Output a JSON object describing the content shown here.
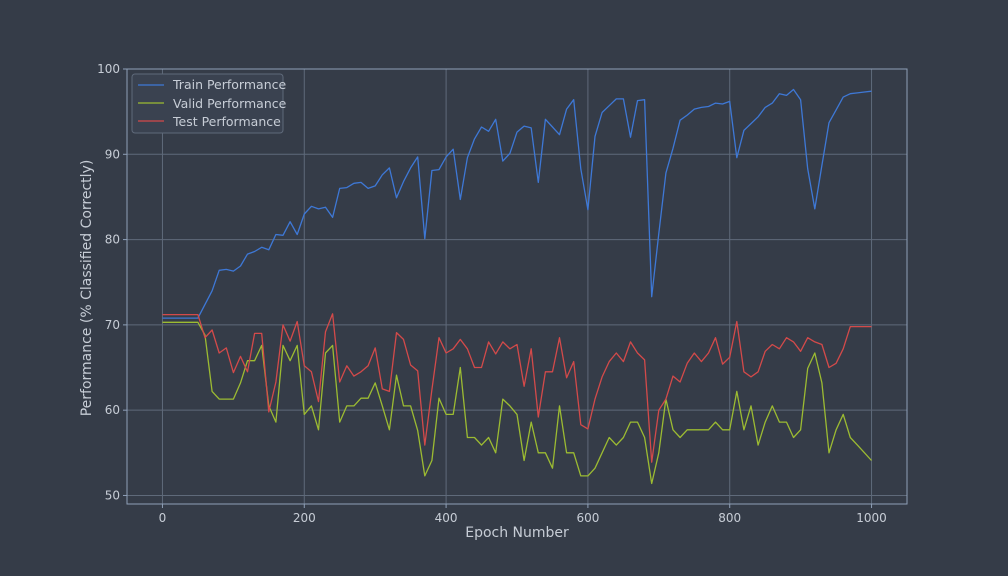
{
  "colors": {
    "background": "#353c48",
    "axes_frame": "#8fa0b8",
    "grid": "#5f6a7a",
    "text": "#c7cdd6",
    "train": "#3e78d6",
    "valid": "#9cbb32",
    "test": "#d34a4a"
  },
  "chart_data": {
    "type": "line",
    "title": "",
    "xlabel": "Epoch Number",
    "ylabel": "Performance (% Classified Correctly)",
    "xlim": [
      -50,
      1050
    ],
    "ylim": [
      49,
      100
    ],
    "xticks": [
      0,
      200,
      400,
      600,
      800,
      1000
    ],
    "yticks": [
      50,
      60,
      70,
      80,
      90,
      100
    ],
    "grid": true,
    "legend_position": "top-left",
    "series": [
      {
        "name": "Train Performance",
        "color": "#3e78d6",
        "x": [
          0,
          50,
          70,
          80,
          90,
          100,
          110,
          120,
          130,
          140,
          150,
          160,
          170,
          180,
          190,
          200,
          210,
          220,
          230,
          240,
          250,
          260,
          270,
          280,
          290,
          300,
          310,
          320,
          330,
          340,
          350,
          360,
          370,
          380,
          390,
          400,
          410,
          420,
          430,
          440,
          450,
          460,
          470,
          480,
          490,
          500,
          510,
          520,
          530,
          540,
          550,
          560,
          570,
          580,
          590,
          600,
          610,
          620,
          630,
          640,
          650,
          660,
          670,
          680,
          690,
          700,
          710,
          720,
          730,
          740,
          750,
          760,
          770,
          780,
          790,
          800,
          810,
          820,
          830,
          840,
          850,
          860,
          870,
          880,
          890,
          900,
          910,
          920,
          930,
          940,
          950,
          960,
          970,
          980,
          990,
          1000
        ],
        "values": [
          70.8,
          70.8,
          74,
          76.4,
          76.5,
          76.3,
          76.9,
          78.3,
          78.6,
          79.1,
          78.8,
          80.6,
          80.5,
          82.1,
          80.6,
          83,
          83.9,
          83.6,
          83.8,
          82.6,
          86,
          86.1,
          86.6,
          86.7,
          86,
          86.3,
          87.6,
          88.4,
          84.9,
          86.8,
          88.4,
          89.7,
          80.1,
          88.1,
          88.2,
          89.7,
          90.6,
          84.7,
          89.6,
          91.8,
          93.2,
          92.7,
          94.1,
          89.2,
          90.1,
          92.6,
          93.3,
          93.1,
          86.7,
          94.1,
          93.2,
          92.3,
          95.3,
          96.4,
          88.3,
          83.5,
          92.1,
          94.9,
          95.7,
          96.5,
          96.5,
          92,
          96.3,
          96.4,
          73.3,
          80.7,
          87.8,
          90.7,
          94,
          94.6,
          95.3,
          95.5,
          95.6,
          96,
          95.9,
          96.2,
          89.6,
          92.8,
          93.6,
          94.4,
          95.5,
          96,
          97.1,
          96.9,
          97.6,
          96.4,
          88.3,
          83.6,
          88.7,
          93.7,
          95.2,
          96.7,
          97.1,
          97.2,
          97.3,
          97.4
        ]
      },
      {
        "name": "Valid Performance",
        "color": "#9cbb32",
        "x": [
          0,
          50,
          60,
          70,
          80,
          90,
          100,
          110,
          120,
          130,
          140,
          150,
          160,
          170,
          180,
          190,
          200,
          210,
          220,
          230,
          240,
          250,
          260,
          270,
          280,
          290,
          300,
          310,
          320,
          330,
          340,
          350,
          360,
          370,
          380,
          390,
          400,
          410,
          420,
          430,
          440,
          450,
          460,
          470,
          480,
          490,
          500,
          510,
          520,
          530,
          540,
          550,
          560,
          570,
          580,
          590,
          600,
          610,
          620,
          630,
          640,
          650,
          660,
          670,
          680,
          690,
          700,
          710,
          720,
          730,
          740,
          750,
          760,
          770,
          780,
          790,
          800,
          810,
          820,
          830,
          840,
          850,
          860,
          870,
          880,
          890,
          900,
          910,
          920,
          930,
          940,
          950,
          960,
          970,
          980,
          990,
          1000
        ],
        "values": [
          70.3,
          70.3,
          68.8,
          62.2,
          61.3,
          61.3,
          61.3,
          63.2,
          65.8,
          65.8,
          67.6,
          60.5,
          58.6,
          67.6,
          65.8,
          67.6,
          59.5,
          60.5,
          57.7,
          66.7,
          67.6,
          58.6,
          60.5,
          60.5,
          61.4,
          61.4,
          63.2,
          60.5,
          57.7,
          64.1,
          60.5,
          60.5,
          57.6,
          52.3,
          54.1,
          61.4,
          59.5,
          59.5,
          65,
          56.8,
          56.8,
          55.9,
          56.8,
          55,
          61.3,
          60.5,
          59.5,
          54.1,
          58.6,
          55,
          55,
          53.2,
          60.5,
          55,
          55,
          52.3,
          52.3,
          53.2,
          55,
          56.8,
          55.9,
          56.8,
          58.6,
          58.6,
          56.8,
          51.4,
          55,
          61.3,
          57.7,
          56.8,
          57.7,
          57.7,
          57.7,
          57.7,
          58.6,
          57.7,
          57.7,
          62.2,
          57.7,
          60.5,
          55.9,
          58.6,
          60.5,
          58.6,
          58.6,
          56.8,
          57.7,
          64.9,
          66.7,
          63.2,
          55,
          57.7,
          59.5,
          56.8,
          55.9,
          55,
          54.1
        ]
      },
      {
        "name": "Test Performance",
        "color": "#d34a4a",
        "x": [
          0,
          50,
          60,
          70,
          80,
          90,
          100,
          110,
          120,
          130,
          140,
          150,
          160,
          170,
          180,
          190,
          200,
          210,
          220,
          230,
          240,
          250,
          260,
          270,
          280,
          290,
          300,
          310,
          320,
          330,
          340,
          350,
          360,
          370,
          380,
          390,
          400,
          410,
          420,
          430,
          440,
          450,
          460,
          470,
          480,
          490,
          500,
          510,
          520,
          530,
          540,
          550,
          560,
          570,
          580,
          590,
          600,
          610,
          620,
          630,
          640,
          650,
          660,
          670,
          680,
          690,
          700,
          710,
          720,
          730,
          740,
          750,
          760,
          770,
          780,
          790,
          800,
          810,
          820,
          830,
          840,
          850,
          860,
          870,
          880,
          890,
          900,
          910,
          920,
          930,
          940,
          950,
          960,
          970,
          980,
          990,
          1000
        ],
        "values": [
          71.2,
          71.2,
          68.5,
          69.4,
          66.7,
          67.3,
          64.4,
          66.3,
          64.5,
          69,
          69,
          59.8,
          63.3,
          70,
          68.1,
          70.4,
          65.2,
          64.5,
          61,
          69.2,
          71.3,
          63.3,
          65.2,
          64,
          64.5,
          65.2,
          67.3,
          62.5,
          62.2,
          69.1,
          68.3,
          65.3,
          64.6,
          55.9,
          62.4,
          68.5,
          66.7,
          67.2,
          68.3,
          67.2,
          65,
          65,
          68,
          66.6,
          68,
          67.2,
          67.7,
          62.8,
          67.2,
          59.2,
          64.5,
          64.5,
          68.5,
          63.8,
          65.7,
          58.3,
          57.8,
          61.3,
          63.9,
          65.7,
          66.7,
          65.7,
          68,
          66.7,
          65.9,
          53.9,
          60,
          61.3,
          64,
          63.3,
          65.5,
          66.7,
          65.7,
          66.7,
          68.5,
          65.4,
          66.2,
          70.4,
          64.5,
          63.9,
          64.5,
          66.9,
          67.7,
          67.2,
          68.5,
          68,
          66.9,
          68.5,
          68,
          67.7,
          65,
          65.5,
          67.2,
          69.8,
          69.8,
          69.8,
          69.8
        ]
      }
    ]
  }
}
